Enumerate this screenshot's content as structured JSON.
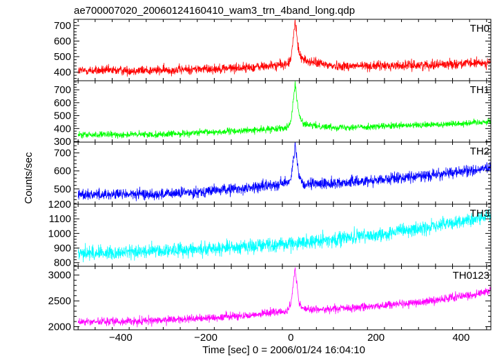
{
  "chart_data": {
    "type": "line",
    "title": "ae700007020_20060124160410_wam3_trn_4band_long.qdp",
    "xlabel": "Time [sec] 0 = 2006/01/24 16:04:10",
    "ylabel": "Counts/sec",
    "xlim": [
      -510,
      470
    ],
    "x_ticks": [
      -400,
      -200,
      0,
      200,
      400
    ],
    "grid": false,
    "panels": [
      {
        "name": "TH0",
        "color": "#ff0000",
        "ylim": [
          345,
          740
        ],
        "y_ticks": [
          400,
          500,
          600,
          700
        ],
        "trend": {
          "x": [
            -500,
            -300,
            -100,
            -50,
            -10,
            0,
            5,
            10,
            15,
            20,
            25,
            30,
            40,
            60,
            100,
            200,
            300,
            400,
            470
          ],
          "y": [
            410,
            412,
            430,
            440,
            450,
            480,
            600,
            730,
            600,
            520,
            500,
            480,
            470,
            460,
            440,
            440,
            445,
            455,
            460
          ]
        },
        "noise": 22
      },
      {
        "name": "TH1",
        "color": "#00ff00",
        "ylim": [
          295,
          770
        ],
        "y_ticks": [
          300,
          400,
          500,
          600,
          700
        ],
        "trend": {
          "x": [
            -500,
            -300,
            -100,
            -50,
            -10,
            0,
            5,
            10,
            15,
            20,
            25,
            30,
            40,
            60,
            100,
            200,
            300,
            400,
            470
          ],
          "y": [
            350,
            355,
            385,
            395,
            410,
            450,
            600,
            750,
            600,
            500,
            460,
            440,
            425,
            420,
            410,
            415,
            425,
            440,
            455
          ]
        },
        "noise": 18
      },
      {
        "name": "TH2",
        "color": "#0000ff",
        "ylim": [
          415,
          760
        ],
        "y_ticks": [
          500,
          600,
          700
        ],
        "trend": {
          "x": [
            -500,
            -300,
            -100,
            -50,
            -10,
            0,
            5,
            10,
            15,
            20,
            25,
            30,
            40,
            60,
            100,
            200,
            300,
            400,
            470
          ],
          "y": [
            470,
            470,
            505,
            520,
            535,
            560,
            650,
            740,
            640,
            560,
            535,
            525,
            520,
            530,
            530,
            550,
            570,
            595,
            615
          ]
        },
        "noise": 22
      },
      {
        "name": "TH3",
        "color": "#00ffff",
        "ylim": [
          775,
          1200
        ],
        "y_ticks": [
          800,
          900,
          1000,
          1100,
          1200
        ],
        "trend": {
          "x": [
            -500,
            -400,
            -200,
            0,
            200,
            300,
            400,
            470
          ],
          "y": [
            865,
            870,
            895,
            930,
            990,
            1030,
            1080,
            1120
          ]
        },
        "noise": 35
      },
      {
        "name": "TH0123",
        "color": "#ff00ff",
        "ylim": [
          1940,
          3170
        ],
        "y_ticks": [
          2000,
          2500,
          3000
        ],
        "trend": {
          "x": [
            -500,
            -300,
            -100,
            -50,
            -10,
            0,
            5,
            10,
            15,
            20,
            25,
            30,
            40,
            60,
            100,
            200,
            300,
            400,
            470
          ],
          "y": [
            2090,
            2120,
            2220,
            2270,
            2300,
            2400,
            2800,
            3150,
            2750,
            2450,
            2380,
            2350,
            2340,
            2330,
            2340,
            2400,
            2470,
            2590,
            2680
          ]
        },
        "noise": 55
      }
    ]
  }
}
